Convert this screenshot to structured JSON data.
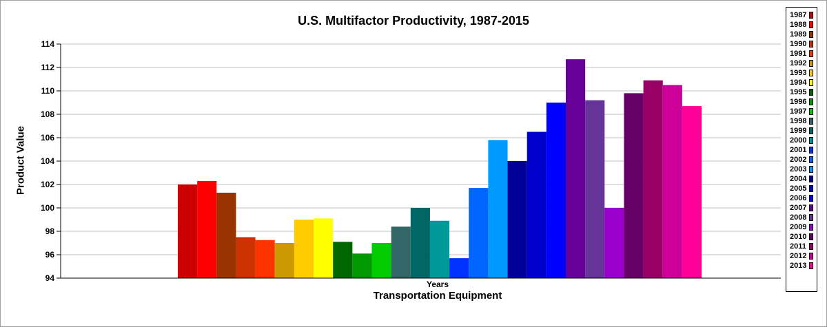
{
  "chart_data": {
    "type": "bar",
    "title": "U.S. Multifactor Productivity, 1987-2015",
    "subtitle": "Transportation Equipment",
    "xlabel": "Years",
    "ylabel": "Product Value",
    "ylim": [
      94,
      114
    ],
    "yticks": [
      94,
      96,
      98,
      100,
      102,
      104,
      106,
      108,
      110,
      112,
      114
    ],
    "grid": true,
    "legend_position": "right",
    "series": [
      {
        "name": "1987",
        "value": 102.0,
        "color": "#cc0000"
      },
      {
        "name": "1988",
        "value": 102.3,
        "color": "#ff0000"
      },
      {
        "name": "1989",
        "value": 101.3,
        "color": "#993300"
      },
      {
        "name": "1990",
        "value": 97.5,
        "color": "#cc3300"
      },
      {
        "name": "1991",
        "value": 97.25,
        "color": "#ff3300"
      },
      {
        "name": "1992",
        "value": 97.0,
        "color": "#cc9900"
      },
      {
        "name": "1993",
        "value": 99.0,
        "color": "#ffcc00"
      },
      {
        "name": "1994",
        "value": 99.1,
        "color": "#ffff00"
      },
      {
        "name": "1995",
        "value": 97.1,
        "color": "#006600"
      },
      {
        "name": "1996",
        "value": 96.1,
        "color": "#009900"
      },
      {
        "name": "1997",
        "value": 97.0,
        "color": "#00cc00"
      },
      {
        "name": "1998",
        "value": 98.4,
        "color": "#336666"
      },
      {
        "name": "1999",
        "value": 100.0,
        "color": "#006666"
      },
      {
        "name": "2000",
        "value": 98.9,
        "color": "#009999"
      },
      {
        "name": "2001",
        "value": 95.7,
        "color": "#0033ff"
      },
      {
        "name": "2002",
        "value": 101.7,
        "color": "#0066ff"
      },
      {
        "name": "2003",
        "value": 105.8,
        "color": "#0099ff"
      },
      {
        "name": "2004",
        "value": 104.0,
        "color": "#000099"
      },
      {
        "name": "2005",
        "value": 106.5,
        "color": "#0000cc"
      },
      {
        "name": "2006",
        "value": 109.0,
        "color": "#0000ff"
      },
      {
        "name": "2007",
        "value": 112.7,
        "color": "#660099"
      },
      {
        "name": "2008",
        "value": 109.2,
        "color": "#663399"
      },
      {
        "name": "2009",
        "value": 100.0,
        "color": "#9900cc"
      },
      {
        "name": "2010",
        "value": 109.8,
        "color": "#660066"
      },
      {
        "name": "2011",
        "value": 110.9,
        "color": "#990066"
      },
      {
        "name": "2012",
        "value": 110.5,
        "color": "#cc0099"
      },
      {
        "name": "2013",
        "value": 108.7,
        "color": "#ff0099"
      }
    ]
  }
}
